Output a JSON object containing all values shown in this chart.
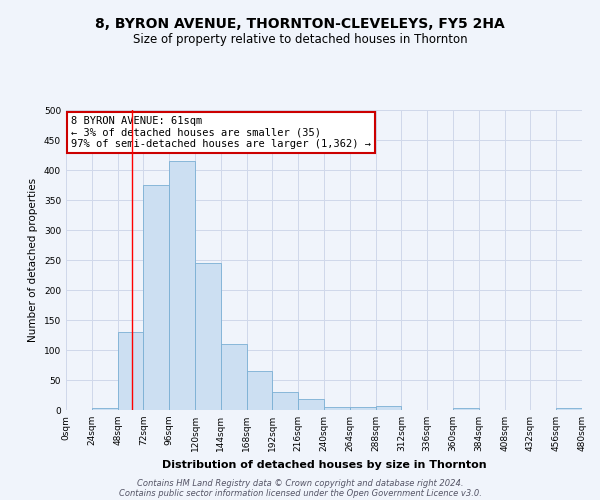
{
  "title": "8, BYRON AVENUE, THORNTON-CLEVELEYS, FY5 2HA",
  "subtitle": "Size of property relative to detached houses in Thornton",
  "xlabel": "Distribution of detached houses by size in Thornton",
  "ylabel": "Number of detached properties",
  "bin_edges": [
    0,
    24,
    48,
    72,
    96,
    120,
    144,
    168,
    192,
    216,
    240,
    264,
    288,
    312,
    336,
    360,
    384,
    408,
    432,
    456,
    480
  ],
  "bar_heights": [
    0,
    3,
    130,
    375,
    415,
    245,
    110,
    65,
    30,
    18,
    5,
    5,
    7,
    0,
    0,
    4,
    0,
    0,
    0,
    3
  ],
  "bar_color": "#ccdff2",
  "bar_edge_color": "#7aafd4",
  "red_line_x": 61,
  "annotation_line1": "8 BYRON AVENUE: 61sqm",
  "annotation_line2": "← 3% of detached houses are smaller (35)",
  "annotation_line3": "97% of semi-detached houses are larger (1,362) →",
  "annotation_box_color": "#ffffff",
  "annotation_box_edge_color": "#cc0000",
  "ylim": [
    0,
    500
  ],
  "yticks": [
    0,
    50,
    100,
    150,
    200,
    250,
    300,
    350,
    400,
    450,
    500
  ],
  "xtick_labels": [
    "0sqm",
    "24sqm",
    "48sqm",
    "72sqm",
    "96sqm",
    "120sqm",
    "144sqm",
    "168sqm",
    "192sqm",
    "216sqm",
    "240sqm",
    "264sqm",
    "288sqm",
    "312sqm",
    "336sqm",
    "360sqm",
    "384sqm",
    "408sqm",
    "432sqm",
    "456sqm",
    "480sqm"
  ],
  "grid_color": "#d0d8ea",
  "footer_line1": "Contains HM Land Registry data © Crown copyright and database right 2024.",
  "footer_line2": "Contains public sector information licensed under the Open Government Licence v3.0.",
  "title_fontsize": 10,
  "subtitle_fontsize": 8.5,
  "xlabel_fontsize": 8,
  "ylabel_fontsize": 7.5,
  "tick_fontsize": 6.5,
  "footer_fontsize": 6,
  "annotation_fontsize": 7.5,
  "background_color": "#f0f4fb"
}
